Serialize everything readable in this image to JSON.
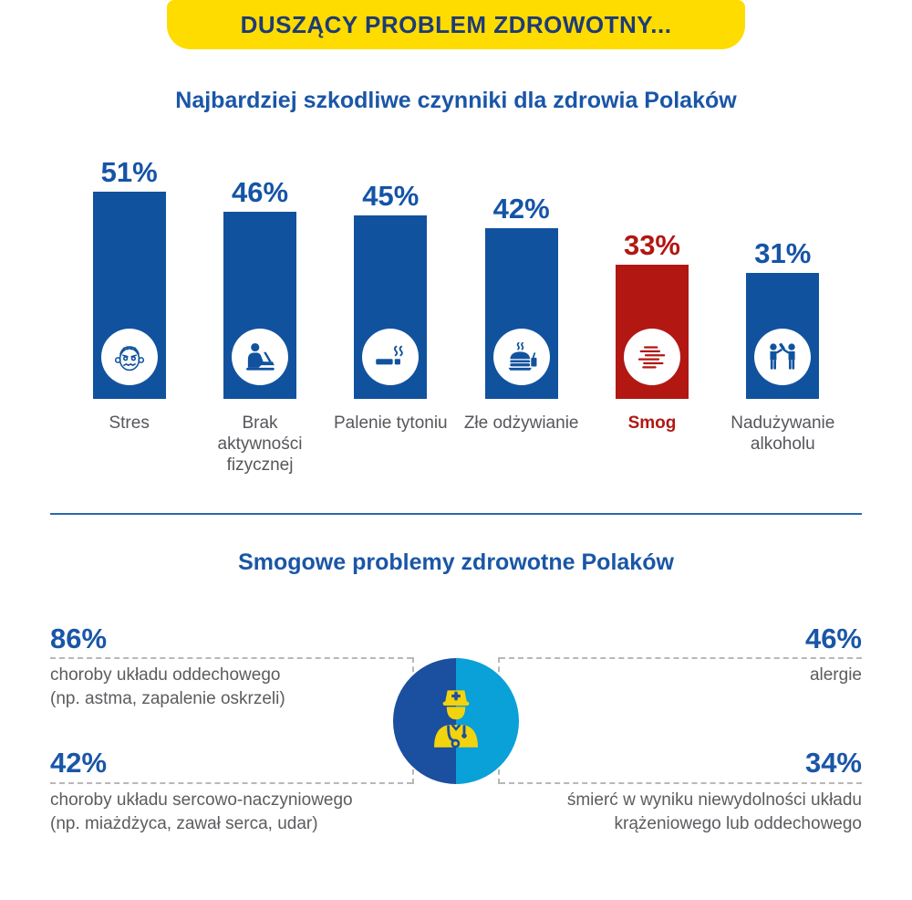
{
  "banner": {
    "label": "DUSZĄCY PROBLEM ZDROWOTNY..."
  },
  "colors": {
    "banner_bg": "#ffdc00",
    "banner_text": "#1e3b76",
    "title_blue": "#1a56a7",
    "bar_blue": "#11529f",
    "accent_red": "#b21712",
    "label_gray": "#55575b",
    "dash_gray": "#b8b8b8",
    "divider_blue": "#2d68ae",
    "circle_left_blue": "#1b4f9f",
    "circle_right_azure": "#0aa0d8",
    "doctor_yellow": "#f2d30e"
  },
  "chart_data": [
    {
      "type": "bar",
      "title": "Najbardziej szkodliwe czynniki dla zdrowia Polaków",
      "unit": "%",
      "ylim": [
        0,
        60
      ],
      "grid": false,
      "categories": [
        "Stres",
        "Brak aktywności fizycznej",
        "Palenie tytoniu",
        "Złe odżywianie",
        "Smog",
        "Nadużywanie alkoholu"
      ],
      "values": [
        51,
        46,
        45,
        42,
        33,
        31
      ],
      "bars": [
        {
          "label": "Stres",
          "value": 51,
          "color": "#11529f",
          "value_color": "#1554a6",
          "icon": "stressed-face-icon",
          "highlight": false
        },
        {
          "label": "Brak aktywności fizycznej",
          "value": 46,
          "color": "#11529f",
          "value_color": "#1554a6",
          "icon": "person-laptop-icon",
          "highlight": false
        },
        {
          "label": "Palenie tytoniu",
          "value": 45,
          "color": "#11529f",
          "value_color": "#1554a6",
          "icon": "cigarette-icon",
          "highlight": false
        },
        {
          "label": "Złe odżywianie",
          "value": 42,
          "color": "#11529f",
          "value_color": "#1554a6",
          "icon": "fast-food-icon",
          "highlight": false
        },
        {
          "label": "Smog",
          "value": 33,
          "color": "#b21712",
          "value_color": "#b21712",
          "icon": "smog-icon",
          "highlight": true
        },
        {
          "label": "Nadużywanie alkoholu",
          "value": 31,
          "color": "#11529f",
          "value_color": "#1554a6",
          "icon": "drinking-people-icon",
          "highlight": false
        }
      ]
    },
    {
      "type": "stats",
      "title": "Smogowe problemy zdrowotne Polaków",
      "center_icon": "doctor-icon",
      "items": [
        {
          "value": "86%",
          "position": "top-left",
          "lines": [
            "choroby układu oddechowego",
            "(np. astma, zapalenie oskrzeli)"
          ]
        },
        {
          "value": "46%",
          "position": "top-right",
          "lines": [
            "alergie"
          ]
        },
        {
          "value": "42%",
          "position": "bottom-left",
          "lines": [
            "choroby układu sercowo-naczyniowego",
            "(np. miażdżyca, zawał serca, udar)"
          ]
        },
        {
          "value": "34%",
          "position": "bottom-right",
          "lines": [
            "śmierć w wyniku niewydolności układu",
            "krążeniowego lub oddechowego"
          ]
        }
      ]
    }
  ]
}
